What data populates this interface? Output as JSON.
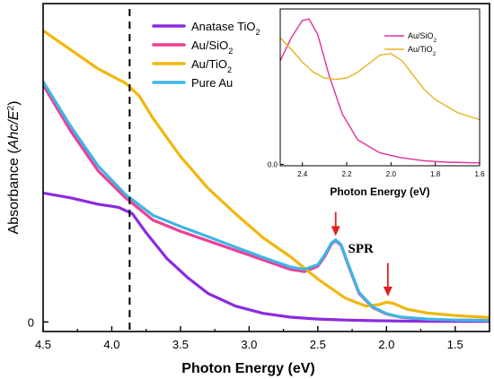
{
  "chart_data": [
    {
      "type": "line",
      "x_label": "Photon Energy (eV)",
      "y_label_prefix": "Absorbance (",
      "y_label_var": "Ahc/E",
      "y_label_sup": "2",
      "y_label_suffix": ")",
      "xlim": [
        4.5,
        1.25
      ],
      "ylim": [
        -0.03,
        1.0
      ],
      "x_reversed": true,
      "x_ticks": [
        "4.5",
        "4.0",
        "3.5",
        "3.0",
        "2.5",
        "2.0",
        "1.5"
      ],
      "x_tick_values": [
        4.5,
        4.0,
        3.5,
        3.0,
        2.5,
        2.0,
        1.5
      ],
      "y_ticks": [
        "0"
      ],
      "y_tick_values": [
        0
      ],
      "dashed_line_x": 3.87,
      "legend_position": "top-center",
      "series": [
        {
          "name_main": "Anatase TiO",
          "name_sub": "2",
          "color": "#8b2be0",
          "x": [
            4.5,
            4.3,
            4.1,
            3.95,
            3.85,
            3.75,
            3.6,
            3.45,
            3.3,
            3.1,
            2.9,
            2.7,
            2.5,
            2.3,
            2.1,
            1.9,
            1.7,
            1.5,
            1.25
          ],
          "y": [
            0.405,
            0.39,
            0.37,
            0.36,
            0.34,
            0.28,
            0.2,
            0.14,
            0.09,
            0.05,
            0.027,
            0.015,
            0.009,
            0.006,
            0.004,
            0.003,
            0.002,
            0.002,
            0.002
          ]
        },
        {
          "name_main": "Au/SiO",
          "name_sub": "2",
          "color": "#ee3e96",
          "x": [
            4.5,
            4.3,
            4.1,
            3.9,
            3.7,
            3.5,
            3.3,
            3.1,
            2.9,
            2.7,
            2.6,
            2.5,
            2.45,
            2.4,
            2.37,
            2.33,
            2.28,
            2.2,
            2.1,
            2.0,
            1.9,
            1.7,
            1.5,
            1.25
          ],
          "y": [
            0.745,
            0.6,
            0.475,
            0.39,
            0.32,
            0.285,
            0.255,
            0.225,
            0.195,
            0.165,
            0.158,
            0.175,
            0.205,
            0.245,
            0.255,
            0.24,
            0.18,
            0.09,
            0.045,
            0.025,
            0.015,
            0.008,
            0.006,
            0.005
          ]
        },
        {
          "name_main": "Au/TiO",
          "name_sub": "2",
          "color": "#f2b70f",
          "x": [
            4.5,
            4.3,
            4.1,
            3.9,
            3.8,
            3.7,
            3.5,
            3.3,
            3.1,
            2.9,
            2.7,
            2.5,
            2.3,
            2.15,
            2.05,
            2.0,
            1.95,
            1.85,
            1.7,
            1.5,
            1.25
          ],
          "y": [
            0.915,
            0.855,
            0.795,
            0.75,
            0.71,
            0.64,
            0.52,
            0.42,
            0.34,
            0.265,
            0.205,
            0.135,
            0.075,
            0.05,
            0.055,
            0.062,
            0.058,
            0.04,
            0.028,
            0.02,
            0.014
          ]
        },
        {
          "name_main": "Pure Au",
          "name_sub": "",
          "color": "#3db6e6",
          "x": [
            4.5,
            4.3,
            4.1,
            3.9,
            3.7,
            3.5,
            3.3,
            3.1,
            2.9,
            2.7,
            2.6,
            2.5,
            2.45,
            2.4,
            2.37,
            2.33,
            2.28,
            2.2,
            2.1,
            2.0,
            1.9,
            1.7,
            1.5,
            1.25
          ],
          "y": [
            0.755,
            0.615,
            0.49,
            0.4,
            0.335,
            0.3,
            0.268,
            0.235,
            0.203,
            0.173,
            0.165,
            0.18,
            0.21,
            0.248,
            0.258,
            0.243,
            0.183,
            0.093,
            0.047,
            0.026,
            0.016,
            0.009,
            0.006,
            0.005
          ]
        }
      ],
      "annotations": [
        {
          "text": "SPR",
          "x": 2.28,
          "y": 0.235
        },
        {
          "arrow_x": 2.37,
          "arrow_y_from": 0.345,
          "arrow_y_to": 0.27,
          "color": "#e02020"
        },
        {
          "arrow_x": 1.99,
          "arrow_y_from": 0.185,
          "arrow_y_to": 0.08,
          "color": "#e02020"
        }
      ]
    },
    {
      "type": "line",
      "x_label": "Photon Energy (eV)",
      "xlim": [
        2.5,
        1.6
      ],
      "ylim": [
        -0.01,
        1.08
      ],
      "x_reversed": true,
      "x_ticks": [
        "2.4",
        "2.2",
        "2.0",
        "1.8",
        "1.6"
      ],
      "x_tick_values": [
        2.4,
        2.2,
        2.0,
        1.8,
        1.6
      ],
      "y_ticks": [
        "0.0"
      ],
      "y_tick_values": [
        0.0
      ],
      "legend_position": "top-right",
      "series": [
        {
          "name_main": "Au/SiO",
          "name_sub": "2",
          "color": "#e0309a",
          "x": [
            2.5,
            2.45,
            2.4,
            2.37,
            2.33,
            2.28,
            2.22,
            2.15,
            2.05,
            1.95,
            1.85,
            1.75,
            1.6
          ],
          "y": [
            0.72,
            0.88,
            1.0,
            1.01,
            0.9,
            0.62,
            0.35,
            0.17,
            0.08,
            0.045,
            0.025,
            0.015,
            0.01
          ]
        },
        {
          "name_main": "Au/TiO",
          "name_sub": "2",
          "color": "#e8b321",
          "x": [
            2.5,
            2.45,
            2.4,
            2.35,
            2.3,
            2.25,
            2.2,
            2.15,
            2.1,
            2.05,
            2.0,
            1.95,
            1.9,
            1.85,
            1.8,
            1.7,
            1.6
          ],
          "y": [
            0.88,
            0.8,
            0.71,
            0.64,
            0.6,
            0.59,
            0.6,
            0.64,
            0.7,
            0.76,
            0.77,
            0.72,
            0.62,
            0.52,
            0.45,
            0.36,
            0.31
          ]
        }
      ]
    }
  ]
}
